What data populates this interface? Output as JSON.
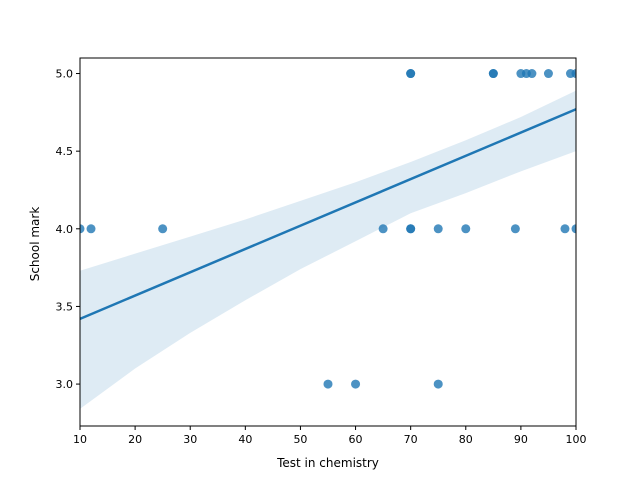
{
  "chart_data": {
    "type": "scatter",
    "xlabel": "Test in chemistry",
    "ylabel": "School mark",
    "xlim": [
      10,
      100
    ],
    "ylim": [
      2.73,
      5.1
    ],
    "xticks": [
      10,
      20,
      30,
      40,
      50,
      60,
      70,
      80,
      90,
      100
    ],
    "xtick_labels": [
      "10",
      "20",
      "30",
      "40",
      "50",
      "60",
      "70",
      "80",
      "90",
      "100"
    ],
    "yticks": [
      3.0,
      3.5,
      4.0,
      4.5,
      5.0
    ],
    "ytick_labels": [
      "3.0",
      "3.5",
      "4.0",
      "4.5",
      "5.0"
    ],
    "grid": false,
    "points": [
      {
        "x": 10,
        "y": 4.0
      },
      {
        "x": 12,
        "y": 4.0
      },
      {
        "x": 25,
        "y": 4.0
      },
      {
        "x": 55,
        "y": 3.0
      },
      {
        "x": 60,
        "y": 3.0
      },
      {
        "x": 65,
        "y": 4.0
      },
      {
        "x": 70,
        "y": 4.0
      },
      {
        "x": 70,
        "y": 4.0
      },
      {
        "x": 70,
        "y": 5.0
      },
      {
        "x": 70,
        "y": 5.0
      },
      {
        "x": 75,
        "y": 3.0
      },
      {
        "x": 75,
        "y": 4.0
      },
      {
        "x": 80,
        "y": 4.0
      },
      {
        "x": 85,
        "y": 5.0
      },
      {
        "x": 85,
        "y": 5.0
      },
      {
        "x": 89,
        "y": 4.0
      },
      {
        "x": 90,
        "y": 5.0
      },
      {
        "x": 91,
        "y": 5.0
      },
      {
        "x": 92,
        "y": 5.0
      },
      {
        "x": 95,
        "y": 5.0
      },
      {
        "x": 98,
        "y": 4.0
      },
      {
        "x": 99,
        "y": 5.0
      },
      {
        "x": 100,
        "y": 5.0
      },
      {
        "x": 100,
        "y": 4.0
      }
    ],
    "regression": {
      "x": [
        10,
        100
      ],
      "y": [
        3.42,
        4.77
      ]
    },
    "confidence_band": {
      "x": [
        10,
        20,
        30,
        40,
        50,
        60,
        70,
        80,
        90,
        100
      ],
      "upper": [
        3.73,
        3.84,
        3.95,
        4.06,
        4.18,
        4.3,
        4.43,
        4.57,
        4.72,
        4.89
      ],
      "lower": [
        2.84,
        3.1,
        3.33,
        3.54,
        3.74,
        3.92,
        4.1,
        4.23,
        4.37,
        4.5
      ]
    },
    "colors": {
      "points": "#1f77b4",
      "line": "#1f77b4",
      "band": "#1f77b4"
    }
  }
}
